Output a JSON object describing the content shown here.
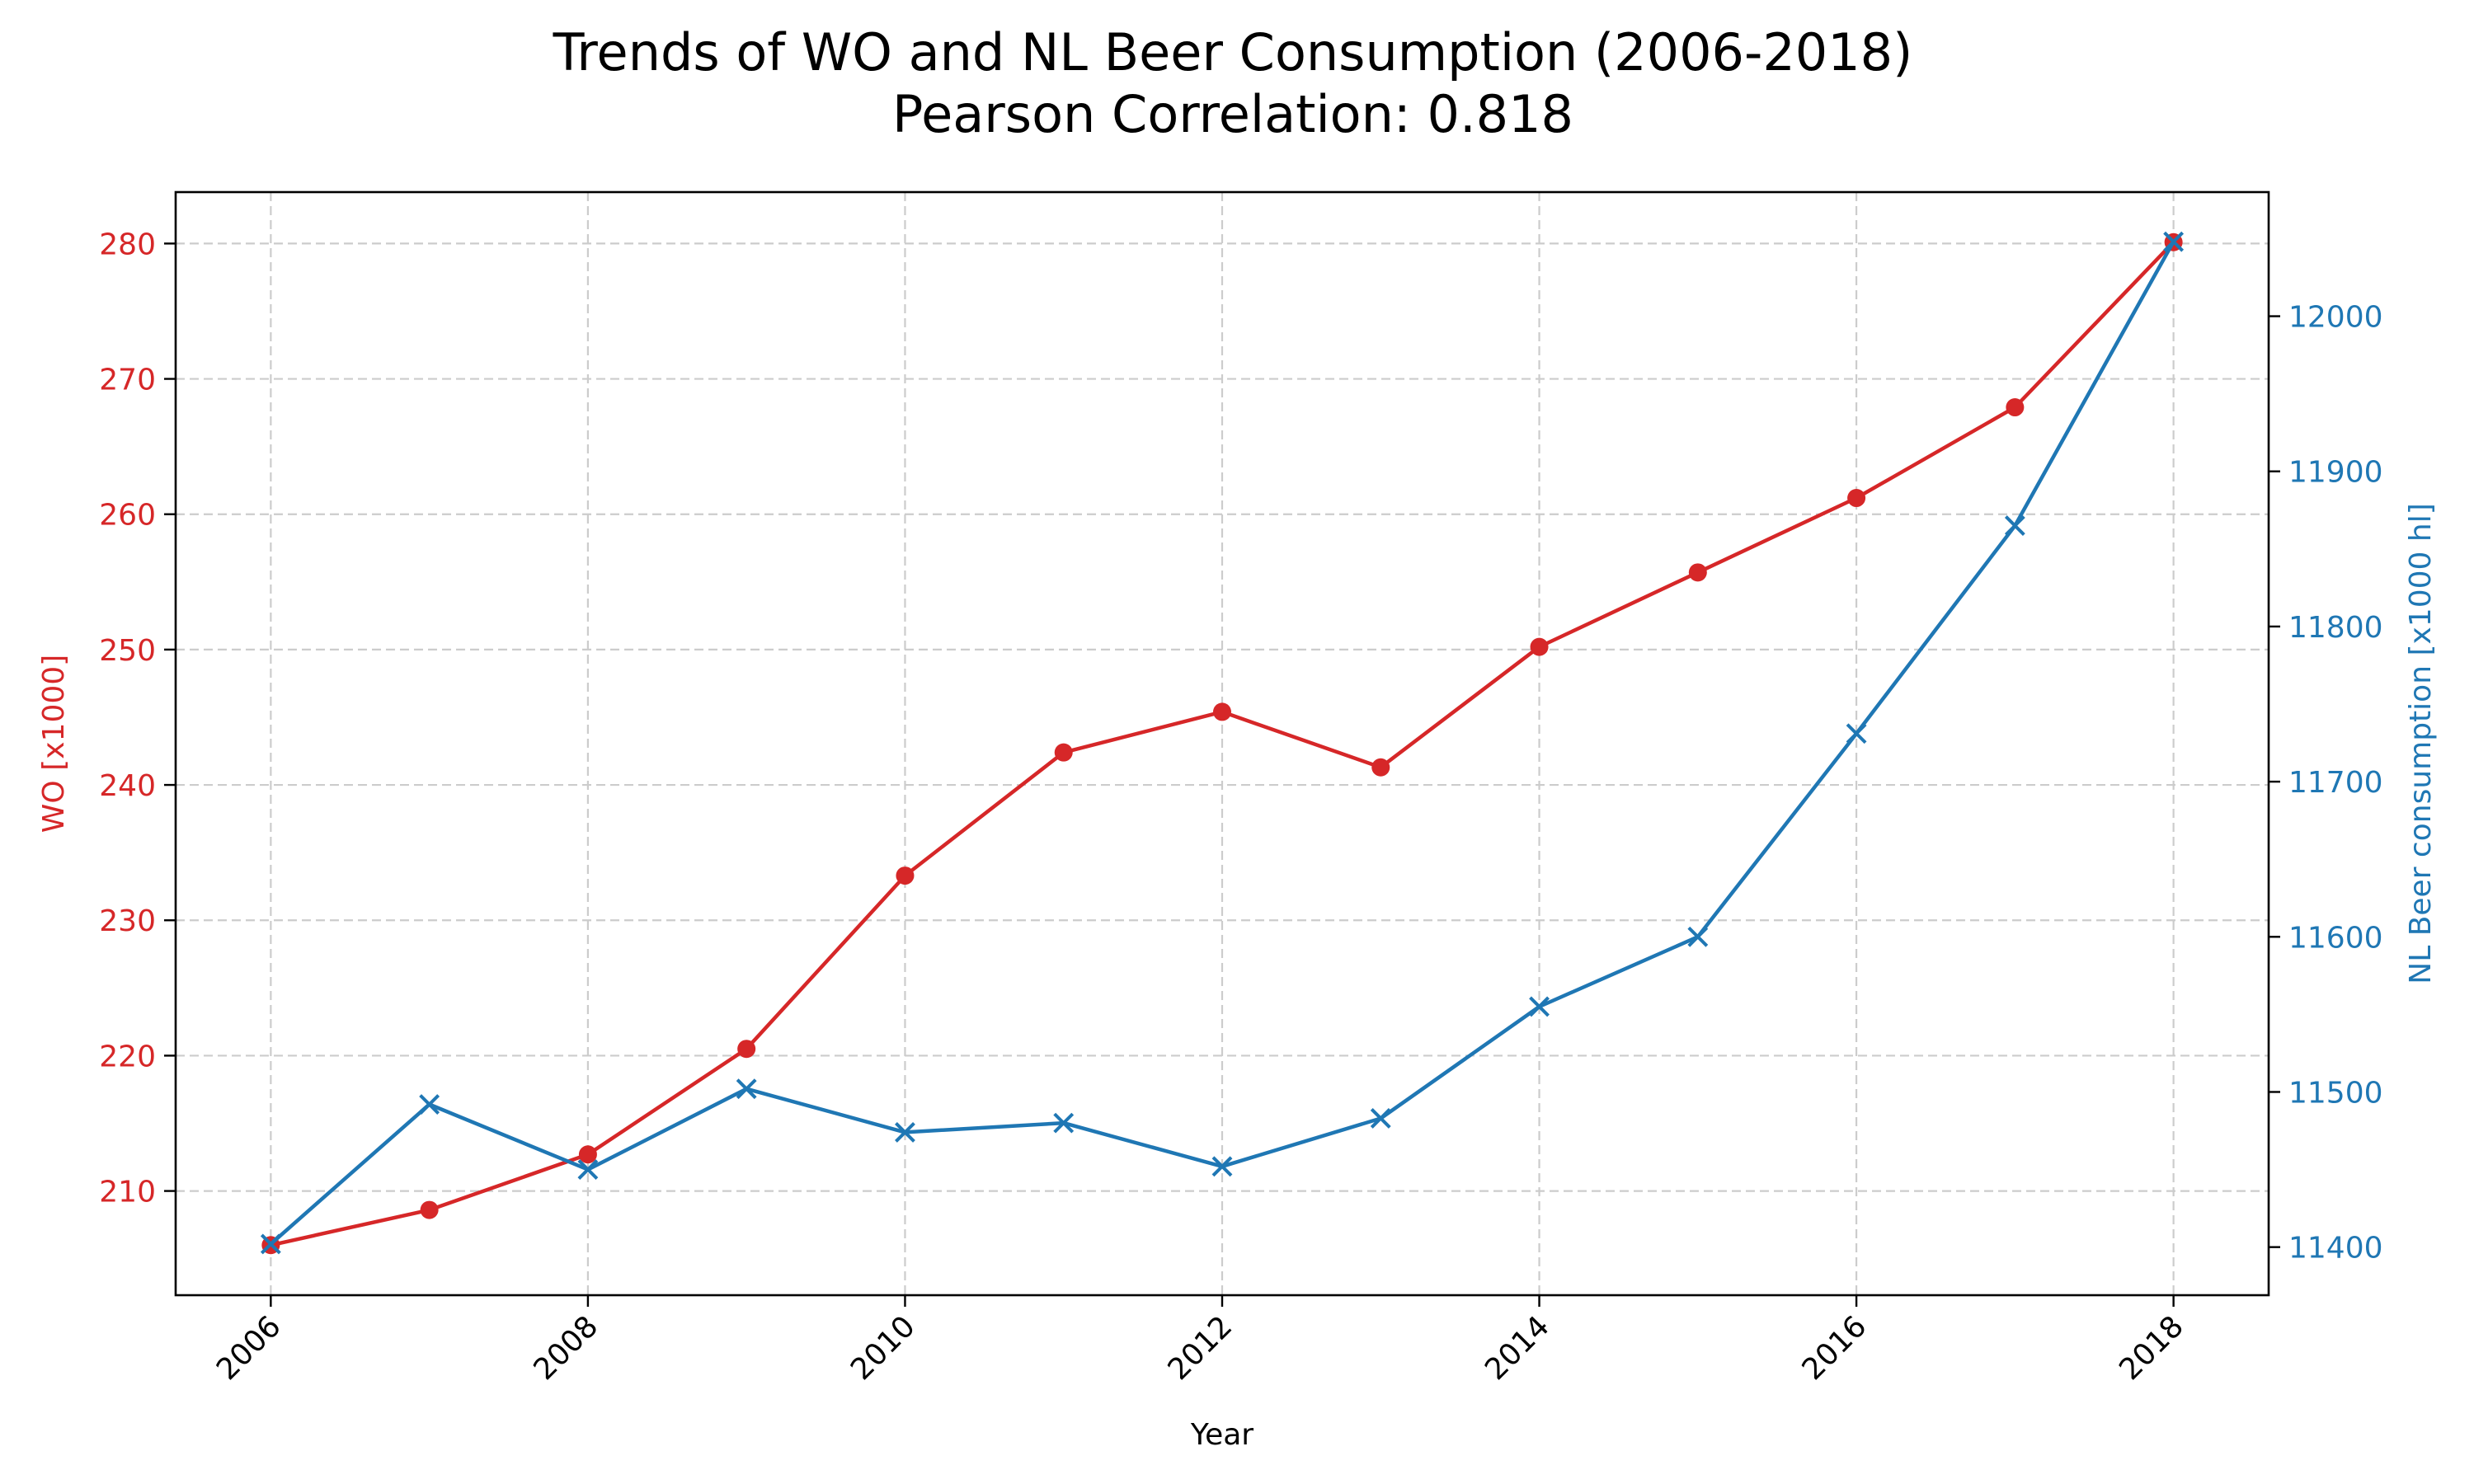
{
  "chart_data": {
    "type": "line",
    "title": "Trends of WO and NL Beer Consumption (2006-2018)",
    "subtitle": "Pearson Correlation: 0.818",
    "xlabel": "Year",
    "ylabel_left": "WO [x1000]",
    "ylabel_right": "NL Beer consumption [x1000 hl]",
    "x": [
      2006,
      2007,
      2008,
      2009,
      2010,
      2011,
      2012,
      2013,
      2014,
      2015,
      2016,
      2017,
      2018
    ],
    "x_ticks": [
      "2006",
      "2008",
      "2010",
      "2012",
      "2014",
      "2016",
      "2018"
    ],
    "xlim": [
      2005.4,
      2018.6
    ],
    "x_tick_rotation": 45,
    "grid": true,
    "series": [
      {
        "axis": "left",
        "color": "#d62728",
        "marker": "circle",
        "values": [
          206.0,
          208.6,
          212.7,
          220.5,
          233.3,
          242.4,
          245.4,
          241.3,
          250.2,
          255.7,
          261.2,
          267.9,
          280.1
        ]
      },
      {
        "axis": "right",
        "color": "#1f77b4",
        "marker": "x",
        "values": [
          11402,
          11492,
          11450,
          11502,
          11474,
          11480,
          11452,
          11483,
          11555,
          11600,
          11731,
          11865,
          12048
        ]
      }
    ],
    "y_left": {
      "ticks": [
        "210",
        "220",
        "230",
        "240",
        "250",
        "260",
        "270",
        "280"
      ],
      "ylim": [
        202.3,
        283.8
      ],
      "color": "#d62728"
    },
    "y_right": {
      "ticks": [
        "11400",
        "11500",
        "11600",
        "11700",
        "11800",
        "11900",
        "12000"
      ],
      "ylim": [
        11369,
        12080
      ],
      "color": "#1f77b4"
    }
  }
}
